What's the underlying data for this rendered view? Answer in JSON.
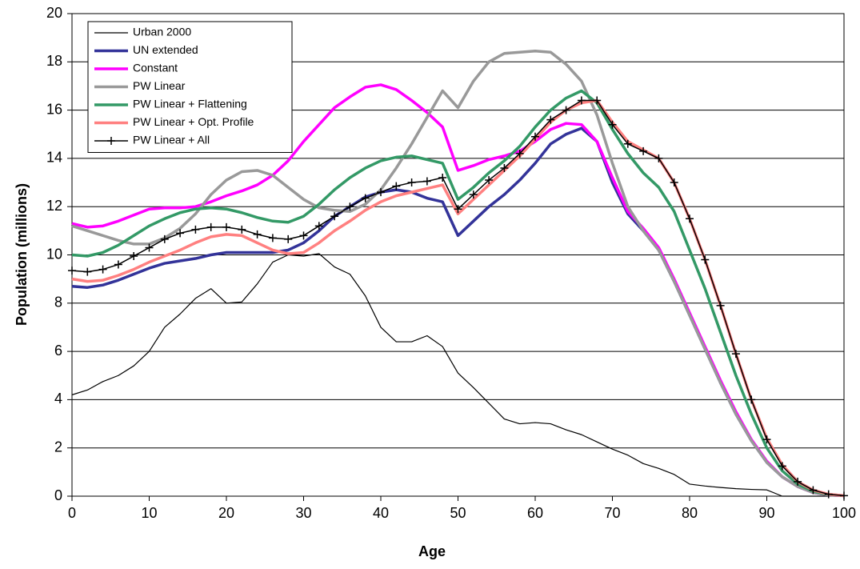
{
  "chart_data": {
    "type": "line",
    "x_label": "Age",
    "y_label": "Population (millions)",
    "xlim": [
      0,
      100
    ],
    "xticks": [
      0,
      10,
      20,
      30,
      40,
      50,
      60,
      70,
      80,
      90,
      100
    ],
    "ylim": [
      0,
      20
    ],
    "yticks": [
      0,
      2,
      4,
      6,
      8,
      10,
      12,
      14,
      16,
      18,
      20
    ],
    "grid": true,
    "legend": "upper left",
    "x": [
      0,
      2,
      4,
      6,
      8,
      10,
      12,
      14,
      16,
      18,
      20,
      22,
      24,
      26,
      28,
      30,
      32,
      34,
      36,
      38,
      40,
      42,
      44,
      46,
      48,
      50,
      52,
      54,
      56,
      58,
      60,
      62,
      64,
      66,
      68,
      70,
      72,
      74,
      76,
      78,
      80,
      82,
      84,
      86,
      88,
      90,
      92,
      94,
      96,
      98,
      100
    ],
    "series": [
      {
        "name": "Urban 2000",
        "color": "#000000",
        "width": 1.2,
        "values": [
          4.2,
          4.4,
          4.75,
          5.0,
          5.4,
          6.0,
          7.0,
          7.55,
          8.2,
          8.6,
          8.0,
          8.05,
          8.8,
          9.7,
          10.0,
          9.95,
          10.05,
          9.5,
          9.2,
          8.3,
          7.0,
          6.4,
          6.4,
          6.65,
          6.2,
          5.1,
          4.5,
          3.85,
          3.2,
          3.0,
          3.05,
          3.0,
          2.75,
          2.55,
          2.25,
          1.95,
          1.7,
          1.35,
          1.15,
          0.9,
          0.5,
          0.42,
          0.36,
          0.31,
          0.28,
          0.26,
          0,
          0,
          0,
          0,
          0
        ]
      },
      {
        "name": "UN extended",
        "color": "#333399",
        "width": 3.5,
        "values": [
          8.7,
          8.65,
          8.75,
          8.95,
          9.2,
          9.45,
          9.65,
          9.75,
          9.85,
          10.0,
          10.1,
          10.1,
          10.1,
          10.1,
          10.2,
          10.5,
          11.0,
          11.6,
          12.0,
          12.4,
          12.6,
          12.7,
          12.6,
          12.35,
          12.2,
          10.8,
          11.4,
          12.0,
          12.5,
          13.1,
          13.8,
          14.6,
          15.0,
          15.25,
          14.7,
          13.0,
          11.7,
          11.0,
          10.2,
          8.9,
          7.5,
          6.1,
          4.7,
          3.4,
          2.3,
          1.4,
          0.8,
          0.4,
          0.15,
          0.05,
          0.02
        ]
      },
      {
        "name": "Constant",
        "color": "#ff00ff",
        "width": 3.5,
        "values": [
          11.3,
          11.15,
          11.2,
          11.4,
          11.65,
          11.9,
          11.95,
          11.95,
          12.0,
          12.2,
          12.45,
          12.65,
          12.9,
          13.3,
          13.9,
          14.7,
          15.4,
          16.1,
          16.55,
          16.95,
          17.05,
          16.85,
          16.4,
          15.9,
          15.3,
          13.5,
          13.7,
          13.95,
          14.1,
          14.3,
          14.7,
          15.2,
          15.45,
          15.4,
          14.7,
          13.2,
          11.8,
          11.1,
          10.3,
          9.0,
          7.6,
          6.2,
          4.8,
          3.5,
          2.35,
          1.45,
          0.8,
          0.4,
          0.15,
          0.05,
          0.02
        ]
      },
      {
        "name": "PW Linear",
        "color": "#999999",
        "width": 3.5,
        "values": [
          11.2,
          11.0,
          10.8,
          10.6,
          10.45,
          10.45,
          10.7,
          11.1,
          11.7,
          12.5,
          13.1,
          13.45,
          13.5,
          13.3,
          12.8,
          12.3,
          11.95,
          11.85,
          11.8,
          12.1,
          12.7,
          13.6,
          14.6,
          15.7,
          16.8,
          16.1,
          17.2,
          18.0,
          18.35,
          18.4,
          18.45,
          18.4,
          17.9,
          17.2,
          15.8,
          13.8,
          12.0,
          11.0,
          10.2,
          8.9,
          7.5,
          6.1,
          4.7,
          3.4,
          2.3,
          1.4,
          0.8,
          0.4,
          0.15,
          0.05,
          0.02
        ]
      },
      {
        "name": "PW Linear + Flattening",
        "color": "#339966",
        "width": 3.5,
        "values": [
          10.0,
          9.95,
          10.1,
          10.4,
          10.8,
          11.2,
          11.5,
          11.75,
          11.9,
          11.95,
          11.9,
          11.75,
          11.55,
          11.4,
          11.35,
          11.6,
          12.1,
          12.7,
          13.2,
          13.6,
          13.9,
          14.05,
          14.1,
          13.95,
          13.8,
          12.3,
          12.8,
          13.4,
          13.9,
          14.5,
          15.3,
          16.0,
          16.5,
          16.8,
          16.3,
          15.2,
          14.2,
          13.4,
          12.8,
          11.8,
          10.2,
          8.6,
          6.8,
          5.0,
          3.4,
          2.0,
          1.05,
          0.5,
          0.2,
          0.07,
          0.02
        ]
      },
      {
        "name": "PW Linear + Opt. Profile",
        "color": "#ff8080",
        "width": 3.5,
        "values": [
          9.0,
          8.9,
          8.95,
          9.15,
          9.4,
          9.7,
          9.95,
          10.2,
          10.5,
          10.75,
          10.85,
          10.8,
          10.5,
          10.2,
          10.05,
          10.1,
          10.5,
          11.0,
          11.4,
          11.85,
          12.2,
          12.45,
          12.6,
          12.75,
          12.9,
          11.7,
          12.3,
          12.9,
          13.5,
          14.1,
          14.8,
          15.5,
          16.0,
          16.3,
          16.4,
          15.5,
          14.7,
          14.35,
          14.0,
          13.0,
          11.5,
          9.8,
          7.9,
          5.9,
          4.0,
          2.4,
          1.3,
          0.6,
          0.25,
          0.08,
          0.02
        ]
      },
      {
        "name": "PW Linear + All",
        "color": "#000000",
        "width": 1.5,
        "marker": "plus",
        "values": [
          9.35,
          9.3,
          9.4,
          9.6,
          9.95,
          10.3,
          10.65,
          10.9,
          11.05,
          11.15,
          11.15,
          11.05,
          10.85,
          10.7,
          10.65,
          10.8,
          11.2,
          11.6,
          12.0,
          12.35,
          12.6,
          12.85,
          13.0,
          13.05,
          13.2,
          11.9,
          12.5,
          13.1,
          13.6,
          14.2,
          14.9,
          15.6,
          16.0,
          16.4,
          16.4,
          15.4,
          14.6,
          14.3,
          14.0,
          13.0,
          11.5,
          9.8,
          7.9,
          5.9,
          4.0,
          2.35,
          1.25,
          0.6,
          0.25,
          0.08,
          0.02
        ]
      }
    ]
  }
}
